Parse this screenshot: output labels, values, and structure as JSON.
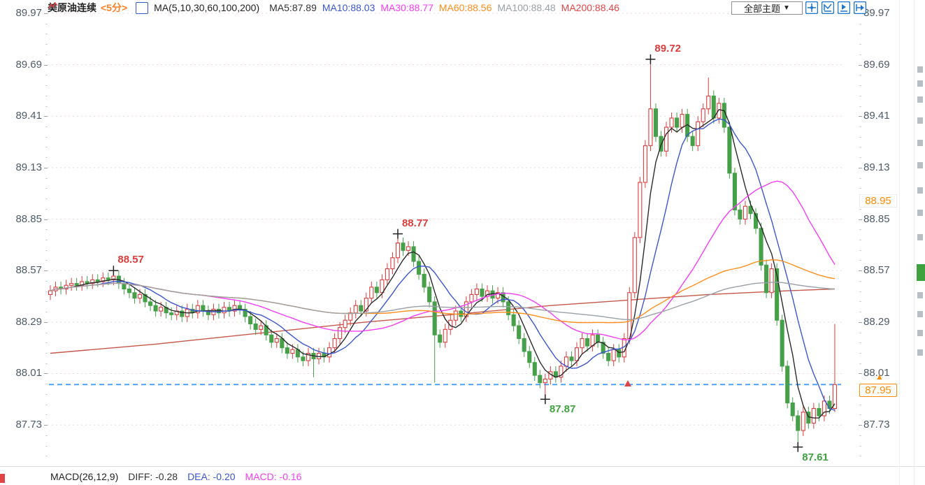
{
  "header": {
    "instrument": "美原油连续",
    "period": "<5分>",
    "ma_group": "MA(5,10,30,60,100,200)",
    "legend": [
      {
        "label": "MA5:87.89",
        "color": "#333333"
      },
      {
        "label": "MA10:88.03",
        "color": "#3a57d0"
      },
      {
        "label": "MA30:88.77",
        "color": "#f63df6"
      },
      {
        "label": "MA60:88.56",
        "color": "#ff8d1a"
      },
      {
        "label": "MA100:88.48",
        "color": "#9aa0a6"
      },
      {
        "label": "MA200:88.46",
        "color": "#e04545"
      }
    ]
  },
  "toolbar": {
    "theme_label": "全部主题",
    "caret": "▼",
    "icon_color": "#1c74cc",
    "icons": [
      "crosshair-icon",
      "fit-chart-icon",
      "scroll-chart-icon",
      "export-chart-icon"
    ]
  },
  "macd": {
    "params": "MACD(26,12,9)",
    "diff": "DIFF: -0.28",
    "dea": "DEA: -0.20",
    "macd": "MACD: -0.16",
    "params_color": "#222222",
    "diff_color": "#333333",
    "dea_color": "#3a57d0",
    "macd_color": "#f63df6"
  },
  "chart_data": {
    "type": "candlestick",
    "symbol": "美原油连续",
    "period": "5分",
    "y_ticks": [
      89.97,
      89.69,
      89.41,
      89.13,
      88.85,
      88.57,
      88.29,
      88.01,
      87.73
    ],
    "current_price": 87.95,
    "price_markers": [
      {
        "text": "88.95",
        "value": 88.95,
        "style": "plain"
      },
      {
        "text": "87.95",
        "value": 87.95,
        "style": "current"
      }
    ],
    "moving_average_values": {
      "MA5": 87.89,
      "MA10": 88.03,
      "MA30": 88.77,
      "MA60": 88.56,
      "MA100": 88.48,
      "MA200": 88.46
    },
    "ma_lines": [
      {
        "period": 5,
        "color": "#2b2b2b"
      },
      {
        "period": 10,
        "color": "#3a57d0"
      },
      {
        "period": 30,
        "color": "#f63df6"
      },
      {
        "period": 60,
        "color": "#ff8d1a"
      },
      {
        "period": 100,
        "color": "#9aa0a6"
      }
    ],
    "ma200_color": "#c5574c",
    "ma200_path": [
      [
        0,
        88.12
      ],
      [
        20,
        88.17
      ],
      [
        40,
        88.23
      ],
      [
        60,
        88.29
      ],
      [
        80,
        88.34
      ],
      [
        95,
        88.38
      ],
      [
        110,
        88.41
      ],
      [
        125,
        88.44
      ],
      [
        140,
        88.46
      ],
      [
        149,
        88.47
      ]
    ],
    "candle_colors": {
      "up": "#dd3c3c",
      "down": "#46a049"
    },
    "grid_color": "#eed9d9",
    "current_line_color": "#4aa3ff",
    "annotations": [
      {
        "text": "88.57",
        "index": 12,
        "side": "high",
        "color": "#dd3c3c"
      },
      {
        "text": "88.77",
        "index": 66,
        "side": "high",
        "color": "#dd3c3c"
      },
      {
        "text": "89.72",
        "index": 114,
        "side": "high",
        "color": "#dd3c3c"
      },
      {
        "text": "87.87",
        "index": 94,
        "side": "low",
        "color": "#3fa23f"
      },
      {
        "text": "87.61",
        "index": 142,
        "side": "low",
        "color": "#3fa23f"
      }
    ],
    "candles": [
      [
        88.44,
        88.49,
        88.41,
        88.46
      ],
      [
        88.46,
        88.51,
        88.43,
        88.48
      ],
      [
        88.48,
        88.51,
        88.44,
        88.47
      ],
      [
        88.47,
        88.52,
        88.44,
        88.49
      ],
      [
        88.49,
        88.53,
        88.46,
        88.5
      ],
      [
        88.5,
        88.53,
        88.46,
        88.49
      ],
      [
        88.49,
        88.54,
        88.46,
        88.51
      ],
      [
        88.51,
        88.54,
        88.47,
        88.5
      ],
      [
        88.5,
        88.55,
        88.47,
        88.52
      ],
      [
        88.52,
        88.55,
        88.48,
        88.51
      ],
      [
        88.51,
        88.56,
        88.48,
        88.53
      ],
      [
        88.53,
        88.56,
        88.49,
        88.52
      ],
      [
        88.52,
        88.57,
        88.49,
        88.54
      ],
      [
        88.54,
        88.57,
        88.47,
        88.5
      ],
      [
        88.5,
        88.53,
        88.44,
        88.47
      ],
      [
        88.47,
        88.5,
        88.42,
        88.45
      ],
      [
        88.45,
        88.48,
        88.39,
        88.42
      ],
      [
        88.42,
        88.47,
        88.39,
        88.44
      ],
      [
        88.44,
        88.47,
        88.37,
        88.4
      ],
      [
        88.4,
        88.43,
        88.35,
        88.38
      ],
      [
        88.38,
        88.41,
        88.32,
        88.35
      ],
      [
        88.35,
        88.4,
        88.32,
        88.37
      ],
      [
        88.37,
        88.4,
        88.31,
        88.34
      ],
      [
        88.34,
        88.37,
        88.3,
        88.33
      ],
      [
        88.33,
        88.38,
        88.3,
        88.35
      ],
      [
        88.35,
        88.38,
        88.29,
        88.32
      ],
      [
        88.32,
        88.39,
        88.29,
        88.36
      ],
      [
        88.36,
        88.39,
        88.31,
        88.34
      ],
      [
        88.34,
        88.41,
        88.31,
        88.38
      ],
      [
        88.38,
        88.41,
        88.32,
        88.35
      ],
      [
        88.35,
        88.38,
        88.3,
        88.33
      ],
      [
        88.33,
        88.39,
        88.3,
        88.36
      ],
      [
        88.36,
        88.39,
        88.31,
        88.34
      ],
      [
        88.34,
        88.4,
        88.31,
        88.37
      ],
      [
        88.37,
        88.4,
        88.32,
        88.35
      ],
      [
        88.35,
        88.41,
        88.32,
        88.38
      ],
      [
        88.38,
        88.41,
        88.33,
        88.36
      ],
      [
        88.36,
        88.39,
        88.29,
        88.32
      ],
      [
        88.32,
        88.35,
        88.25,
        88.28
      ],
      [
        88.28,
        88.31,
        88.22,
        88.25
      ],
      [
        88.25,
        88.3,
        88.22,
        88.27
      ],
      [
        88.27,
        88.3,
        88.19,
        88.22
      ],
      [
        88.22,
        88.25,
        88.15,
        88.18
      ],
      [
        88.18,
        88.23,
        88.15,
        88.2
      ],
      [
        88.2,
        88.23,
        88.12,
        88.15
      ],
      [
        88.15,
        88.18,
        88.09,
        88.12
      ],
      [
        88.12,
        88.17,
        88.09,
        88.14
      ],
      [
        88.14,
        88.17,
        88.07,
        88.1
      ],
      [
        88.1,
        88.13,
        88.05,
        88.08
      ],
      [
        88.08,
        88.15,
        88.05,
        88.12
      ],
      [
        88.12,
        88.15,
        87.99,
        88.09
      ],
      [
        88.09,
        88.15,
        88.06,
        88.12
      ],
      [
        88.12,
        88.15,
        88.07,
        88.1
      ],
      [
        88.1,
        88.18,
        88.07,
        88.15
      ],
      [
        88.15,
        88.23,
        88.12,
        88.2
      ],
      [
        88.2,
        88.29,
        88.17,
        88.26
      ],
      [
        88.26,
        88.33,
        88.23,
        88.3
      ],
      [
        88.3,
        88.37,
        88.27,
        88.34
      ],
      [
        88.34,
        88.41,
        88.31,
        88.38
      ],
      [
        88.38,
        88.41,
        88.32,
        88.35
      ],
      [
        88.35,
        88.45,
        88.32,
        88.42
      ],
      [
        88.42,
        88.51,
        88.39,
        88.48
      ],
      [
        88.48,
        88.51,
        88.42,
        88.45
      ],
      [
        88.45,
        88.55,
        88.42,
        88.52
      ],
      [
        88.52,
        88.61,
        88.49,
        88.58
      ],
      [
        88.58,
        88.67,
        88.55,
        88.64
      ],
      [
        88.64,
        88.77,
        88.61,
        88.72
      ],
      [
        88.72,
        88.75,
        88.65,
        88.68
      ],
      [
        88.68,
        88.73,
        88.65,
        88.7
      ],
      [
        88.7,
        88.73,
        88.59,
        88.62
      ],
      [
        88.62,
        88.65,
        88.52,
        88.55
      ],
      [
        88.55,
        88.58,
        88.45,
        88.48
      ],
      [
        88.48,
        88.51,
        88.37,
        88.4
      ],
      [
        88.4,
        88.43,
        87.96,
        88.22
      ],
      [
        88.22,
        88.25,
        88.15,
        88.18
      ],
      [
        88.18,
        88.28,
        88.15,
        88.25
      ],
      [
        88.25,
        88.33,
        88.22,
        88.3
      ],
      [
        88.3,
        88.38,
        88.27,
        88.35
      ],
      [
        88.35,
        88.38,
        88.29,
        88.32
      ],
      [
        88.32,
        88.43,
        88.29,
        88.4
      ],
      [
        88.4,
        88.47,
        88.37,
        88.44
      ],
      [
        88.44,
        88.5,
        88.41,
        88.47
      ],
      [
        88.47,
        88.5,
        88.4,
        88.43
      ],
      [
        88.43,
        88.49,
        88.4,
        88.46
      ],
      [
        88.46,
        88.49,
        88.39,
        88.42
      ],
      [
        88.42,
        88.48,
        88.39,
        88.45
      ],
      [
        88.45,
        88.48,
        88.37,
        88.4
      ],
      [
        88.4,
        88.43,
        88.3,
        88.33
      ],
      [
        88.33,
        88.36,
        88.24,
        88.27
      ],
      [
        88.27,
        88.3,
        88.17,
        88.2
      ],
      [
        88.2,
        88.23,
        88.1,
        88.13
      ],
      [
        88.13,
        88.16,
        88.04,
        88.07
      ],
      [
        88.07,
        88.1,
        87.97,
        88.0
      ],
      [
        88.0,
        88.03,
        87.93,
        87.96
      ],
      [
        87.96,
        88.01,
        87.87,
        87.98
      ],
      [
        87.98,
        88.05,
        87.95,
        88.02
      ],
      [
        88.02,
        88.05,
        87.96,
        87.99
      ],
      [
        87.99,
        88.08,
        87.96,
        88.05
      ],
      [
        88.05,
        88.13,
        88.02,
        88.1
      ],
      [
        88.1,
        88.13,
        88.05,
        88.08
      ],
      [
        88.08,
        88.18,
        88.05,
        88.15
      ],
      [
        88.15,
        88.23,
        88.12,
        88.2
      ],
      [
        88.2,
        88.23,
        88.13,
        88.16
      ],
      [
        88.16,
        88.25,
        88.13,
        88.22
      ],
      [
        88.22,
        88.25,
        88.15,
        88.18
      ],
      [
        88.18,
        88.21,
        88.09,
        88.12
      ],
      [
        88.12,
        88.15,
        88.05,
        88.08
      ],
      [
        88.08,
        88.17,
        88.05,
        88.14
      ],
      [
        88.14,
        88.17,
        88.07,
        88.1
      ],
      [
        88.1,
        88.23,
        88.07,
        88.2
      ],
      [
        88.2,
        88.48,
        88.17,
        88.45
      ],
      [
        88.45,
        88.78,
        88.42,
        88.75
      ],
      [
        88.75,
        89.08,
        88.72,
        89.05
      ],
      [
        89.05,
        89.28,
        89.02,
        89.25
      ],
      [
        89.25,
        89.72,
        89.22,
        89.45
      ],
      [
        89.45,
        89.48,
        89.27,
        89.3
      ],
      [
        89.3,
        89.33,
        89.19,
        89.22
      ],
      [
        89.22,
        89.38,
        89.19,
        89.35
      ],
      [
        89.35,
        89.43,
        89.32,
        89.4
      ],
      [
        89.4,
        89.43,
        89.32,
        89.35
      ],
      [
        89.35,
        89.45,
        89.32,
        89.42
      ],
      [
        89.42,
        89.45,
        89.27,
        89.3
      ],
      [
        89.3,
        89.33,
        89.22,
        89.25
      ],
      [
        89.25,
        89.41,
        89.22,
        89.38
      ],
      [
        89.38,
        89.48,
        89.35,
        89.45
      ],
      [
        89.45,
        89.62,
        89.42,
        89.52
      ],
      [
        89.52,
        89.55,
        89.37,
        89.4
      ],
      [
        89.4,
        89.51,
        89.37,
        89.48
      ],
      [
        89.48,
        89.51,
        89.32,
        89.35
      ],
      [
        89.35,
        89.38,
        89.07,
        89.1
      ],
      [
        89.1,
        89.13,
        88.87,
        88.9
      ],
      [
        88.9,
        88.93,
        88.82,
        88.85
      ],
      [
        88.85,
        88.95,
        88.82,
        88.92
      ],
      [
        88.92,
        88.95,
        88.85,
        88.88
      ],
      [
        88.88,
        88.91,
        88.77,
        88.8
      ],
      [
        88.8,
        88.83,
        88.57,
        88.6
      ],
      [
        88.6,
        88.63,
        88.42,
        88.45
      ],
      [
        88.45,
        88.61,
        88.42,
        88.58
      ],
      [
        88.58,
        88.61,
        88.27,
        88.3
      ],
      [
        88.3,
        88.33,
        88.02,
        88.05
      ],
      [
        88.05,
        88.08,
        87.82,
        87.85
      ],
      [
        87.85,
        87.88,
        87.75,
        87.78
      ],
      [
        87.78,
        87.81,
        87.61,
        87.7
      ],
      [
        87.7,
        87.83,
        87.67,
        87.8
      ],
      [
        87.8,
        87.83,
        87.71,
        87.74
      ],
      [
        87.74,
        87.85,
        87.71,
        87.82
      ],
      [
        87.82,
        87.85,
        87.75,
        87.78
      ],
      [
        87.78,
        87.89,
        87.75,
        87.86
      ],
      [
        87.86,
        87.89,
        87.79,
        87.82
      ],
      [
        87.82,
        88.28,
        87.8,
        87.95
      ]
    ]
  }
}
